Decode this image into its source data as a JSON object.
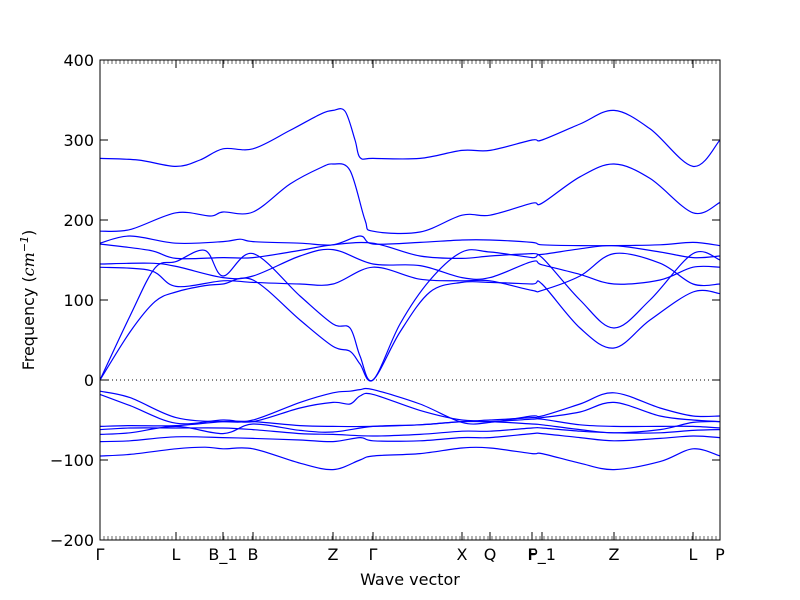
{
  "chart_data": {
    "type": "line",
    "xlabel": "Wave vector",
    "ylabel_text": "Frequency (",
    "ylabel_unit_base": "cm",
    "ylabel_unit_exp": "−1",
    "ylabel_close": ")",
    "ylim": [
      -200,
      400
    ],
    "yticks": [
      -200,
      -100,
      0,
      100,
      200,
      300,
      400
    ],
    "ytick_labels": [
      "−200",
      "−100",
      "0",
      "100",
      "200",
      "300",
      "400"
    ],
    "xlim": [
      0,
      6.2
    ],
    "xticks": [
      {
        "x": 0.0,
        "label": "Γ"
      },
      {
        "x": 0.76,
        "label": "L"
      },
      {
        "x": 1.23,
        "label": "B_1"
      },
      {
        "x": 1.53,
        "label": "B"
      },
      {
        "x": 2.33,
        "label": "Z"
      },
      {
        "x": 2.73,
        "label": "Γ"
      },
      {
        "x": 3.62,
        "label": "X"
      },
      {
        "x": 3.9,
        "label": "Q"
      },
      {
        "x": 4.32,
        "label": "F"
      },
      {
        "x": 4.42,
        "label": "P_1"
      },
      {
        "x": 5.14,
        "label": "Z"
      },
      {
        "x": 5.93,
        "label": "L"
      },
      {
        "x": 6.2,
        "label": "P"
      }
    ],
    "zero_line": true,
    "line_color": "#0000ff",
    "series": [
      {
        "x": [
          0,
          0.38,
          0.76,
          1.0,
          1.23,
          1.53,
          1.9,
          2.2,
          2.33,
          2.45,
          2.55,
          2.6,
          2.73,
          3.2,
          3.62,
          3.9,
          4.32,
          4.42,
          4.8,
          5.14,
          5.5,
          5.93,
          6.2
        ],
        "values": [
          277,
          275,
          267,
          275,
          289,
          289,
          312,
          332,
          337,
          336,
          300,
          278,
          277,
          277,
          287,
          287,
          300,
          300,
          320,
          337,
          314,
          267,
          300
        ]
      },
      {
        "x": [
          0,
          0.3,
          0.76,
          1.1,
          1.23,
          1.53,
          1.9,
          2.2,
          2.33,
          2.5,
          2.65,
          2.73,
          3.2,
          3.62,
          3.9,
          4.32,
          4.42,
          4.8,
          5.14,
          5.5,
          5.93,
          6.2
        ],
        "values": [
          186,
          188,
          209,
          205,
          210,
          210,
          245,
          265,
          270,
          262,
          200,
          186,
          185,
          206,
          206,
          221,
          221,
          254,
          270,
          252,
          209,
          222
        ]
      },
      {
        "x": [
          0,
          0.3,
          0.76,
          1.23,
          1.4,
          1.53,
          2.0,
          2.33,
          2.6,
          2.73,
          3.2,
          3.62,
          3.9,
          4.32,
          4.42,
          4.8,
          5.14,
          5.6,
          5.93,
          6.2
        ],
        "values": [
          171,
          180,
          171,
          173,
          176,
          173,
          171,
          169,
          180,
          170,
          172,
          175,
          175,
          172,
          169,
          168,
          168,
          169,
          172,
          168
        ]
      },
      {
        "x": [
          0,
          0.5,
          0.76,
          1.23,
          1.53,
          2.0,
          2.33,
          2.73,
          3.2,
          3.62,
          3.9,
          4.32,
          4.42,
          4.8,
          5.14,
          5.6,
          5.93,
          6.2
        ],
        "values": [
          170,
          162,
          152,
          153,
          153,
          162,
          169,
          171,
          155,
          152,
          155,
          158,
          157,
          164,
          168,
          160,
          153,
          155
        ]
      },
      {
        "x": [
          0,
          0.5,
          0.76,
          1.23,
          1.53,
          2.0,
          2.33,
          2.73,
          3.2,
          3.62,
          3.9,
          4.32,
          4.42,
          4.8,
          5.14,
          5.6,
          5.93,
          6.2
        ],
        "values": [
          145,
          146,
          142,
          128,
          130,
          155,
          163,
          145,
          143,
          128,
          128,
          148,
          144,
          132,
          120,
          125,
          141,
          141
        ]
      },
      {
        "x": [
          0,
          0.5,
          0.76,
          1.23,
          1.53,
          2.0,
          2.33,
          2.73,
          3.2,
          3.62,
          3.9,
          4.32,
          4.42,
          4.8,
          5.14,
          5.6,
          5.93,
          6.2
        ],
        "values": [
          141,
          137,
          117,
          124,
          122,
          120,
          120,
          141,
          126,
          124,
          124,
          112,
          112,
          130,
          158,
          146,
          120,
          120
        ]
      },
      {
        "x": [
          0,
          0.3,
          0.55,
          0.76,
          1.05,
          1.23,
          1.53,
          2.0,
          2.33,
          2.5,
          2.6,
          2.73,
          3.0,
          3.3,
          3.62,
          3.9,
          4.32,
          4.42,
          4.8,
          5.14,
          5.5,
          5.93,
          6.2
        ],
        "values": [
          0,
          80,
          140,
          148,
          162,
          130,
          158,
          105,
          70,
          65,
          30,
          0,
          70,
          125,
          160,
          160,
          153,
          153,
          100,
          65,
          100,
          158,
          150
        ]
      },
      {
        "x": [
          0,
          0.3,
          0.55,
          0.76,
          1.05,
          1.23,
          1.53,
          2.0,
          2.33,
          2.5,
          2.6,
          2.73,
          3.0,
          3.3,
          3.62,
          3.9,
          4.32,
          4.42,
          4.8,
          5.14,
          5.5,
          5.93,
          6.2
        ],
        "values": [
          0,
          60,
          98,
          110,
          118,
          120,
          125,
          75,
          42,
          36,
          20,
          0,
          60,
          110,
          122,
          122,
          120,
          120,
          65,
          40,
          75,
          110,
          108
        ]
      },
      {
        "x": [
          0,
          0.3,
          0.76,
          1.23,
          1.53,
          2.0,
          2.33,
          2.5,
          2.6,
          2.73,
          3.2,
          3.62,
          3.9,
          4.32,
          4.42,
          4.8,
          5.14,
          5.6,
          5.93,
          6.2
        ],
        "values": [
          -14,
          -22,
          -47,
          -52,
          -50,
          -28,
          -16,
          -14,
          -12,
          -12,
          -30,
          -53,
          -53,
          -45,
          -45,
          -30,
          -16,
          -35,
          -45,
          -45
        ]
      },
      {
        "x": [
          0,
          0.3,
          0.76,
          1.23,
          1.53,
          2.0,
          2.33,
          2.5,
          2.6,
          2.73,
          3.2,
          3.62,
          3.9,
          4.32,
          4.42,
          4.8,
          5.14,
          5.6,
          5.93,
          6.2
        ],
        "values": [
          -18,
          -32,
          -54,
          -50,
          -52,
          -35,
          -28,
          -30,
          -20,
          -18,
          -38,
          -50,
          -50,
          -47,
          -47,
          -40,
          -28,
          -45,
          -50,
          -52
        ]
      },
      {
        "x": [
          0,
          0.3,
          0.76,
          1.23,
          1.53,
          2.0,
          2.33,
          2.73,
          3.2,
          3.62,
          3.9,
          4.32,
          4.42,
          4.8,
          5.14,
          5.6,
          5.93,
          6.2
        ],
        "values": [
          -58,
          -57,
          -57,
          -52,
          -52,
          -57,
          -58,
          -58,
          -56,
          -52,
          -52,
          -49,
          -49,
          -56,
          -58,
          -58,
          -58,
          -60
        ]
      },
      {
        "x": [
          0,
          0.3,
          0.76,
          1.23,
          1.53,
          2.0,
          2.33,
          2.73,
          3.2,
          3.62,
          3.9,
          4.32,
          4.42,
          4.8,
          5.14,
          5.6,
          5.93,
          6.2
        ],
        "values": [
          -68,
          -66,
          -58,
          -67,
          -55,
          -63,
          -65,
          -58,
          -56,
          -52,
          -52,
          -55,
          -56,
          -62,
          -66,
          -62,
          -53,
          -52
        ]
      },
      {
        "x": [
          0,
          0.3,
          0.76,
          1.23,
          1.53,
          2.0,
          2.33,
          2.73,
          3.2,
          3.62,
          3.9,
          4.32,
          4.42,
          4.8,
          5.14,
          5.6,
          5.93,
          6.2
        ],
        "values": [
          -62,
          -60,
          -60,
          -60,
          -62,
          -67,
          -68,
          -70,
          -68,
          -64,
          -64,
          -60,
          -60,
          -64,
          -66,
          -66,
          -63,
          -62
        ]
      },
      {
        "x": [
          0,
          0.3,
          0.76,
          1.23,
          1.53,
          2.0,
          2.33,
          2.6,
          2.73,
          3.2,
          3.62,
          3.9,
          4.32,
          4.42,
          4.8,
          5.14,
          5.6,
          5.93,
          6.2
        ],
        "values": [
          -77,
          -76,
          -71,
          -72,
          -73,
          -75,
          -77,
          -72,
          -76,
          -76,
          -72,
          -72,
          -67,
          -67,
          -72,
          -76,
          -73,
          -70,
          -72
        ]
      },
      {
        "x": [
          0,
          0.3,
          0.76,
          1.05,
          1.23,
          1.53,
          2.0,
          2.33,
          2.6,
          2.73,
          3.2,
          3.62,
          3.9,
          4.32,
          4.42,
          4.8,
          5.14,
          5.6,
          5.93,
          6.2
        ],
        "values": [
          -95,
          -93,
          -86,
          -84,
          -86,
          -86,
          -104,
          -112,
          -100,
          -95,
          -92,
          -85,
          -85,
          -92,
          -92,
          -104,
          -112,
          -102,
          -86,
          -95
        ]
      }
    ]
  }
}
